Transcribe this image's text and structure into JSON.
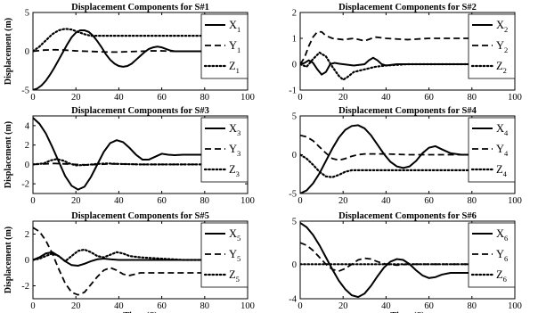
{
  "chart_data": [
    {
      "type": "line",
      "title": "Displacement Components for S#1",
      "ylabel": "Displacement (m)",
      "xlabel": "",
      "xlim": [
        0,
        100
      ],
      "ylim": [
        -5,
        5
      ],
      "xticks": [
        "0",
        "20",
        "40",
        "60",
        "80",
        "100"
      ],
      "yticks": [
        "-5",
        "0",
        "5"
      ],
      "legend": {
        "position": "top-right"
      },
      "series": [
        {
          "name": "X",
          "sub": "1",
          "style": "solid",
          "x": [
            0,
            2,
            4,
            6,
            8,
            10,
            12,
            14,
            16,
            18,
            20,
            22,
            24,
            26,
            28,
            30,
            32,
            34,
            36,
            38,
            40,
            42,
            44,
            46,
            48,
            50,
            52,
            54,
            56,
            58,
            60,
            62,
            64,
            66,
            70,
            74,
            80
          ],
          "y": [
            -5,
            -4.8,
            -4.4,
            -3.8,
            -3,
            -2.1,
            -1.1,
            -0.1,
            0.9,
            1.8,
            2.4,
            2.7,
            2.7,
            2.5,
            2,
            1.3,
            0.5,
            -0.4,
            -1.1,
            -1.6,
            -1.9,
            -2,
            -1.9,
            -1.6,
            -1.1,
            -0.6,
            -0.1,
            0.3,
            0.5,
            0.6,
            0.5,
            0.3,
            0.1,
            0,
            0,
            0,
            0
          ]
        },
        {
          "name": "Y",
          "sub": "1",
          "style": "dashed",
          "x": [
            0,
            5,
            10,
            15,
            20,
            25,
            30,
            35,
            40,
            45,
            50,
            55,
            60,
            65,
            70,
            75,
            80
          ],
          "y": [
            0,
            0.15,
            0.2,
            0.15,
            0.05,
            0,
            -0.05,
            -0.1,
            -0.1,
            -0.05,
            0,
            0.05,
            0.05,
            0,
            0,
            0,
            0
          ]
        },
        {
          "name": "Z",
          "sub": "1",
          "style": "dotted",
          "x": [
            0,
            3,
            6,
            9,
            12,
            15,
            18,
            21,
            24,
            27,
            30,
            35,
            40,
            45,
            50,
            60,
            70,
            80
          ],
          "y": [
            0,
            0.6,
            1.4,
            2.2,
            2.7,
            2.9,
            2.8,
            2.5,
            2.2,
            2,
            2,
            2,
            2,
            2,
            2,
            2,
            2,
            2
          ]
        }
      ]
    },
    {
      "type": "line",
      "title": "Displacement Components for S#2",
      "ylabel": "",
      "xlabel": "",
      "xlim": [
        0,
        100
      ],
      "ylim": [
        -1,
        2
      ],
      "xticks": [
        "0",
        "20",
        "40",
        "60",
        "80",
        "100"
      ],
      "yticks": [
        "-1",
        "0",
        "1",
        "2"
      ],
      "legend": {
        "position": "top-right"
      },
      "series": [
        {
          "name": "X",
          "sub": "2",
          "style": "solid",
          "x": [
            0,
            2,
            4,
            6,
            8,
            10,
            12,
            14,
            16,
            18,
            20,
            25,
            30,
            32,
            34,
            36,
            38,
            40,
            45,
            50,
            60,
            70,
            80
          ],
          "y": [
            0,
            0.05,
            0.15,
            0.05,
            -0.2,
            -0.4,
            -0.3,
            0,
            0.05,
            0.02,
            0,
            -0.05,
            0,
            0.15,
            0.25,
            0.15,
            0,
            -0.05,
            0,
            0,
            0,
            0,
            0
          ]
        },
        {
          "name": "Y",
          "sub": "2",
          "style": "dashed",
          "x": [
            0,
            2,
            4,
            6,
            8,
            10,
            12,
            15,
            20,
            25,
            30,
            35,
            40,
            50,
            60,
            70,
            80
          ],
          "y": [
            0,
            0.25,
            0.7,
            1.05,
            1.25,
            1.25,
            1.1,
            1,
            0.95,
            1,
            0.9,
            1.05,
            1,
            0.95,
            1,
            1,
            1
          ]
        },
        {
          "name": "Z",
          "sub": "2",
          "style": "dotted",
          "x": [
            0,
            3,
            6,
            9,
            12,
            15,
            18,
            20,
            22,
            25,
            30,
            35,
            40,
            50,
            60,
            70,
            80
          ],
          "y": [
            0,
            -0.1,
            0.2,
            0.45,
            0.3,
            -0.1,
            -0.45,
            -0.6,
            -0.5,
            -0.3,
            -0.2,
            -0.1,
            -0.05,
            0,
            0,
            0,
            0
          ]
        }
      ]
    },
    {
      "type": "line",
      "title": "Displacement Components for S#3",
      "ylabel": "Displacement (m)",
      "xlabel": "",
      "xlim": [
        0,
        100
      ],
      "ylim": [
        -3,
        5
      ],
      "xticks": [
        "0",
        "20",
        "40",
        "60",
        "80",
        "100"
      ],
      "yticks": [
        "-2",
        "0",
        "2",
        "4"
      ],
      "legend": {
        "position": "top-right"
      },
      "series": [
        {
          "name": "X",
          "sub": "3",
          "style": "solid",
          "x": [
            0,
            3,
            6,
            9,
            12,
            15,
            18,
            21,
            24,
            27,
            30,
            33,
            36,
            39,
            42,
            45,
            48,
            51,
            54,
            57,
            60,
            63,
            66,
            70,
            75,
            80
          ],
          "y": [
            4.8,
            4.2,
            3.2,
            1.8,
            0.3,
            -1.2,
            -2.2,
            -2.6,
            -2.3,
            -1.3,
            0,
            1.3,
            2.2,
            2.5,
            2.3,
            1.7,
            1,
            0.5,
            0.5,
            0.8,
            1.1,
            1,
            0.95,
            1,
            1,
            1
          ]
        },
        {
          "name": "Y",
          "sub": "3",
          "style": "dashed",
          "x": [
            0,
            5,
            10,
            15,
            20,
            25,
            30,
            35,
            40,
            50,
            60,
            70,
            80
          ],
          "y": [
            0,
            0.05,
            0.1,
            0.05,
            0,
            -0.05,
            0,
            0.05,
            0.05,
            0,
            0,
            0,
            0
          ]
        },
        {
          "name": "Z",
          "sub": "3",
          "style": "dotted",
          "x": [
            0,
            5,
            8,
            11,
            14,
            17,
            20,
            25,
            30,
            35,
            40,
            50,
            60,
            70,
            80
          ],
          "y": [
            0,
            0.1,
            0.4,
            0.55,
            0.4,
            0.1,
            -0.1,
            -0.05,
            0.05,
            0.1,
            0.05,
            0,
            0,
            0,
            0
          ]
        }
      ]
    },
    {
      "type": "line",
      "title": "Displacement Components for S#4",
      "ylabel": "",
      "xlabel": "",
      "xlim": [
        0,
        100
      ],
      "ylim": [
        -5,
        5
      ],
      "xticks": [
        "0",
        "20",
        "40",
        "60",
        "80",
        "100"
      ],
      "yticks": [
        "-5",
        "0",
        "5"
      ],
      "legend": {
        "position": "top-right"
      },
      "series": [
        {
          "name": "X",
          "sub": "4",
          "style": "solid",
          "x": [
            0,
            3,
            6,
            9,
            12,
            15,
            18,
            21,
            24,
            27,
            30,
            33,
            36,
            39,
            42,
            45,
            48,
            51,
            54,
            57,
            60,
            63,
            66,
            70,
            75,
            80
          ],
          "y": [
            -5,
            -4.6,
            -3.7,
            -2.4,
            -0.8,
            0.8,
            2.2,
            3.2,
            3.7,
            3.8,
            3.4,
            2.5,
            1.3,
            0.1,
            -0.9,
            -1.5,
            -1.7,
            -1.5,
            -0.8,
            0.2,
            0.9,
            1.1,
            0.7,
            0.2,
            0,
            0
          ]
        },
        {
          "name": "Y",
          "sub": "4",
          "style": "dashed",
          "x": [
            0,
            3,
            6,
            9,
            12,
            15,
            18,
            21,
            24,
            27,
            30,
            40,
            50,
            60,
            70,
            80
          ],
          "y": [
            2.5,
            2.3,
            1.8,
            1,
            0.2,
            -0.5,
            -0.7,
            -0.5,
            -0.2,
            0,
            0.1,
            0.1,
            0,
            0,
            0,
            0
          ]
        },
        {
          "name": "Z",
          "sub": "4",
          "style": "dotted",
          "x": [
            0,
            3,
            6,
            9,
            12,
            15,
            18,
            21,
            24,
            27,
            30,
            35,
            40,
            50,
            60,
            70,
            80
          ],
          "y": [
            0,
            -0.5,
            -1.3,
            -2.2,
            -2.8,
            -2.9,
            -2.6,
            -2.2,
            -2,
            -2,
            -2,
            -2,
            -2,
            -2,
            -2,
            -2,
            -2
          ]
        }
      ]
    },
    {
      "type": "line",
      "title": "Displacement Components for S#5",
      "ylabel": "Displacement (m)",
      "xlabel": "Time (S)",
      "xlim": [
        0,
        100
      ],
      "ylim": [
        -3,
        3
      ],
      "xticks": [
        "0",
        "20",
        "40",
        "60",
        "80",
        "100"
      ],
      "yticks": [
        "-2",
        "0",
        "2"
      ],
      "legend": {
        "position": "top-right"
      },
      "series": [
        {
          "name": "X",
          "sub": "5",
          "style": "solid",
          "x": [
            0,
            3,
            6,
            9,
            12,
            15,
            18,
            21,
            24,
            27,
            30,
            33,
            36,
            40,
            45,
            50,
            60,
            70,
            80
          ],
          "y": [
            0,
            0.2,
            0.5,
            0.6,
            0.3,
            -0.1,
            -0.4,
            -0.45,
            -0.3,
            -0.1,
            0.05,
            0.1,
            0.05,
            0,
            0,
            0,
            0,
            0,
            0
          ]
        },
        {
          "name": "Y",
          "sub": "5",
          "style": "dashed",
          "x": [
            0,
            3,
            6,
            9,
            12,
            15,
            18,
            21,
            24,
            27,
            30,
            33,
            36,
            39,
            42,
            45,
            50,
            60,
            70,
            80
          ],
          "y": [
            2.5,
            2.2,
            1.5,
            0.5,
            -0.7,
            -1.8,
            -2.5,
            -2.7,
            -2.5,
            -1.9,
            -1.3,
            -0.8,
            -0.6,
            -0.8,
            -1.1,
            -1.2,
            -1,
            -1,
            -1,
            -1
          ]
        },
        {
          "name": "Z",
          "sub": "5",
          "style": "dotted",
          "x": [
            0,
            3,
            6,
            9,
            12,
            15,
            18,
            21,
            24,
            27,
            30,
            33,
            36,
            39,
            42,
            45,
            50,
            60,
            70,
            80
          ],
          "y": [
            0,
            0.1,
            0.3,
            0.5,
            0.3,
            -0.1,
            0.3,
            0.7,
            0.8,
            0.6,
            0.3,
            0.2,
            0.4,
            0.6,
            0.5,
            0.3,
            0.2,
            0.1,
            0,
            0
          ]
        }
      ]
    },
    {
      "type": "line",
      "title": "Displacement Components for S#6",
      "ylabel": "",
      "xlabel": "Time (S)",
      "xlim": [
        0,
        100
      ],
      "ylim": [
        -4,
        5
      ],
      "xticks": [
        "0",
        "20",
        "40",
        "60",
        "80",
        "100"
      ],
      "yticks": [
        "-4",
        "0",
        "5"
      ],
      "legend": {
        "position": "top-right"
      },
      "series": [
        {
          "name": "X",
          "sub": "6",
          "style": "solid",
          "x": [
            0,
            3,
            6,
            9,
            12,
            15,
            18,
            21,
            24,
            27,
            30,
            33,
            36,
            39,
            42,
            45,
            48,
            51,
            54,
            57,
            60,
            63,
            66,
            70,
            75,
            80
          ],
          "y": [
            4.8,
            4.3,
            3.4,
            2.2,
            0.8,
            -0.6,
            -1.9,
            -2.9,
            -3.6,
            -3.8,
            -3.4,
            -2.5,
            -1.4,
            -0.4,
            0.3,
            0.6,
            0.5,
            0,
            -0.7,
            -1.3,
            -1.6,
            -1.5,
            -1.2,
            -1,
            -1,
            -1
          ]
        },
        {
          "name": "Y",
          "sub": "6",
          "style": "dashed",
          "x": [
            0,
            3,
            6,
            9,
            12,
            15,
            18,
            21,
            24,
            27,
            30,
            33,
            36,
            40,
            45,
            50,
            60,
            70,
            80
          ],
          "y": [
            2.5,
            2.2,
            1.6,
            0.8,
            0,
            -0.6,
            -0.8,
            -0.5,
            0,
            0.5,
            0.7,
            0.6,
            0.3,
            0,
            -0.1,
            0,
            0,
            0,
            0
          ]
        },
        {
          "name": "Z",
          "sub": "6",
          "style": "dotted",
          "x": [
            0,
            10,
            20,
            30,
            40,
            50,
            60,
            70,
            80
          ],
          "y": [
            0,
            0,
            0,
            0,
            0,
            0,
            0,
            0,
            0
          ]
        }
      ]
    }
  ]
}
